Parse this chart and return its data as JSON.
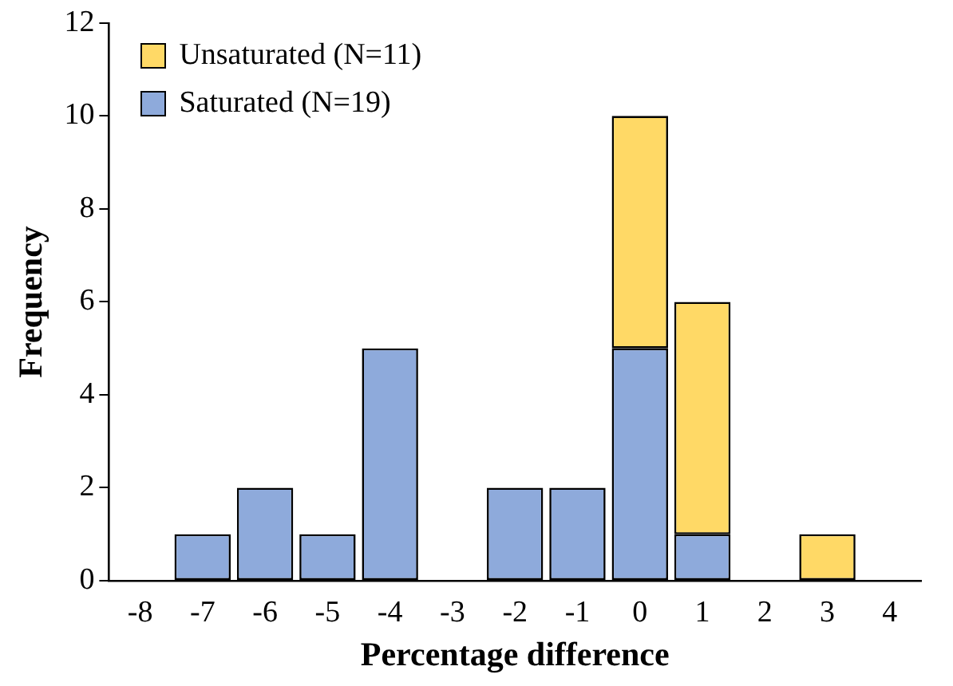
{
  "chart_data": {
    "type": "bar",
    "stacked": true,
    "xlabel": "Percentage difference",
    "ylabel": "Frequency",
    "categories": [
      "-8",
      "-7",
      "-6",
      "-5",
      "-4",
      "-3",
      "-2",
      "-1",
      "0",
      "1",
      "2",
      "3",
      "4"
    ],
    "series": [
      {
        "name": "Saturated (N=19)",
        "color": "#8eaadb",
        "values": [
          0,
          1,
          2,
          1,
          5,
          0,
          2,
          2,
          5,
          1,
          0,
          0,
          0
        ]
      },
      {
        "name": "Unsaturated (N=11)",
        "color": "#ffd966",
        "values": [
          0,
          0,
          0,
          0,
          0,
          0,
          0,
          0,
          5,
          5,
          0,
          1,
          0
        ]
      }
    ],
    "ylim": [
      0,
      12
    ],
    "yticks": [
      0,
      2,
      4,
      6,
      8,
      10,
      12
    ],
    "grid": false,
    "legend": "top left"
  }
}
